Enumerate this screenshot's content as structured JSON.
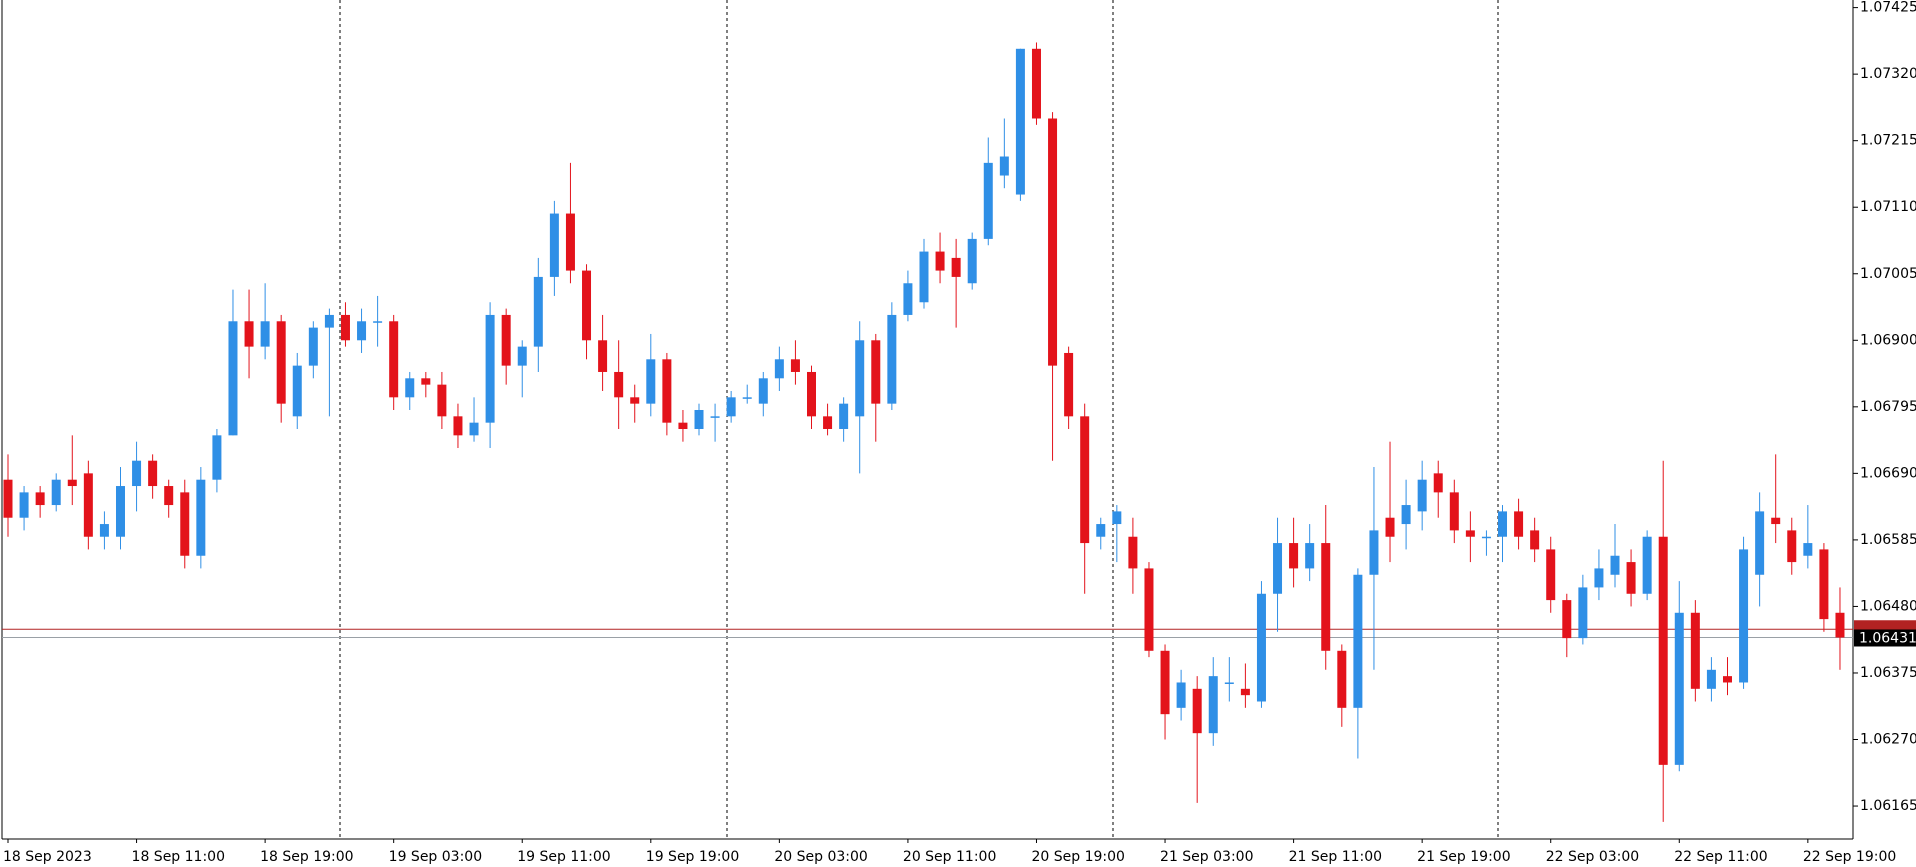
{
  "chart_data": {
    "type": "candlestick",
    "x_labels": [
      "18 Sep 2023",
      "18 Sep 11:00",
      "18 Sep 19:00",
      "19 Sep 03:00",
      "19 Sep 11:00",
      "19 Sep 19:00",
      "20 Sep 03:00",
      "20 Sep 11:00",
      "20 Sep 19:00",
      "21 Sep 03:00",
      "21 Sep 11:00",
      "21 Sep 19:00",
      "22 Sep 03:00",
      "22 Sep 11:00",
      "22 Sep 19:00"
    ],
    "open": [
      1.0668,
      1.0662,
      1.0666,
      1.0664,
      1.0668,
      1.0669,
      1.0659,
      1.0659,
      1.0667,
      1.0671,
      1.0667,
      1.0666,
      1.0656,
      1.0668,
      1.0675,
      1.0693,
      1.0689,
      1.0693,
      1.0678,
      1.0686,
      1.0692,
      1.0694,
      1.069,
      1.0693,
      1.0693,
      1.0681,
      1.0684,
      1.0683,
      1.0678,
      1.0675,
      1.0677,
      1.0694,
      1.0686,
      1.0689,
      1.07,
      1.071,
      1.0701,
      1.069,
      1.0685,
      1.0681,
      1.068,
      1.0687,
      1.0677,
      1.0676,
      1.0678,
      1.0678,
      1.0681,
      1.068,
      1.0684,
      1.0687,
      1.0685,
      1.0678,
      1.0676,
      1.0678,
      1.069,
      1.068,
      1.0694,
      1.0696,
      1.0704,
      1.0703,
      1.0699,
      1.0706,
      1.0716,
      1.0713,
      1.0736,
      1.0725,
      1.0688,
      1.0678,
      1.0659,
      1.0661,
      1.0659,
      1.0654,
      1.0641,
      1.0632,
      1.0635,
      1.0628,
      1.0636,
      1.0635,
      1.0633,
      1.065,
      1.0658,
      1.0654,
      1.0658,
      1.0641,
      1.0632,
      1.0653,
      1.0662,
      1.0661,
      1.0663,
      1.0669,
      1.0666,
      1.066,
      1.0659,
      1.0659,
      1.0663,
      1.066,
      1.0657,
      1.0649,
      1.0643,
      1.0651,
      1.0653,
      1.0655,
      1.065,
      1.0659,
      1.0623,
      1.0647,
      1.0635,
      1.0637,
      1.0636,
      1.0653,
      1.0662,
      1.066,
      1.0656,
      1.0657,
      1.0647
    ],
    "high": [
      1.0672,
      1.0667,
      1.0667,
      1.0669,
      1.0675,
      1.0671,
      1.0663,
      1.067,
      1.0674,
      1.0672,
      1.0668,
      1.0668,
      1.067,
      1.0676,
      1.0698,
      1.0698,
      1.0699,
      1.0694,
      1.0688,
      1.0693,
      1.0695,
      1.0696,
      1.0695,
      1.0697,
      1.0694,
      1.0685,
      1.0685,
      1.0685,
      1.068,
      1.0681,
      1.0696,
      1.0695,
      1.069,
      1.0703,
      1.0712,
      1.0718,
      1.0702,
      1.0694,
      1.069,
      1.0683,
      1.0691,
      1.0688,
      1.0679,
      1.068,
      1.068,
      1.0682,
      1.0683,
      1.0685,
      1.0689,
      1.069,
      1.0686,
      1.068,
      1.0681,
      1.0693,
      1.0691,
      1.0696,
      1.0701,
      1.0706,
      1.0707,
      1.0706,
      1.0707,
      1.0722,
      1.0725,
      1.0736,
      1.0737,
      1.0726,
      1.0689,
      1.068,
      1.0662,
      1.0664,
      1.0662,
      1.0655,
      1.0642,
      1.0638,
      1.0637,
      1.064,
      1.064,
      1.0639,
      1.0652,
      1.0662,
      1.0662,
      1.0661,
      1.0664,
      1.0642,
      1.0654,
      1.067,
      1.0674,
      1.0668,
      1.0671,
      1.0671,
      1.0668,
      1.0663,
      1.066,
      1.0664,
      1.0665,
      1.0662,
      1.0659,
      1.065,
      1.0653,
      1.0657,
      1.0661,
      1.0657,
      1.066,
      1.0671,
      1.0652,
      1.0649,
      1.064,
      1.064,
      1.0659,
      1.0666,
      1.0672,
      1.0662,
      1.0664,
      1.0658,
      1.0651
    ],
    "low": [
      1.0659,
      1.066,
      1.0662,
      1.0663,
      1.0664,
      1.0657,
      1.0657,
      1.0657,
      1.0663,
      1.0665,
      1.0662,
      1.0654,
      1.0654,
      1.0666,
      1.0675,
      1.0684,
      1.0687,
      1.0677,
      1.0676,
      1.0684,
      1.0678,
      1.0689,
      1.0688,
      1.0689,
      1.0679,
      1.0679,
      1.0681,
      1.0676,
      1.0673,
      1.0674,
      1.0673,
      1.0683,
      1.0681,
      1.0685,
      1.0697,
      1.0699,
      1.0687,
      1.0682,
      1.0676,
      1.0677,
      1.0678,
      1.0675,
      1.0674,
      1.0675,
      1.0674,
      1.0677,
      1.068,
      1.0678,
      1.0682,
      1.0683,
      1.0676,
      1.0675,
      1.0674,
      1.0669,
      1.0674,
      1.0679,
      1.0693,
      1.0695,
      1.0699,
      1.0692,
      1.0698,
      1.0705,
      1.0714,
      1.0712,
      1.0724,
      1.0671,
      1.0676,
      1.065,
      1.0657,
      1.0655,
      1.065,
      1.064,
      1.0627,
      1.063,
      1.0617,
      1.0626,
      1.0633,
      1.0632,
      1.0632,
      1.0644,
      1.0651,
      1.0652,
      1.0638,
      1.0629,
      1.0624,
      1.0638,
      1.0655,
      1.0657,
      1.066,
      1.0662,
      1.0658,
      1.0655,
      1.0656,
      1.0655,
      1.0657,
      1.0655,
      1.0647,
      1.064,
      1.0642,
      1.0649,
      1.0651,
      1.0648,
      1.0649,
      1.0614,
      1.0622,
      1.0633,
      1.0633,
      1.0634,
      1.0635,
      1.0648,
      1.0658,
      1.0653,
      1.0654,
      1.0644,
      1.0638
    ],
    "close": [
      1.0662,
      1.0666,
      1.0664,
      1.0668,
      1.0667,
      1.0659,
      1.0661,
      1.0667,
      1.0671,
      1.0667,
      1.0664,
      1.0656,
      1.0668,
      1.0675,
      1.0693,
      1.0689,
      1.0693,
      1.068,
      1.0686,
      1.0692,
      1.0694,
      1.069,
      1.0693,
      1.0693,
      1.0681,
      1.0684,
      1.0683,
      1.0678,
      1.0675,
      1.0677,
      1.0694,
      1.0686,
      1.0689,
      1.07,
      1.071,
      1.0701,
      1.069,
      1.0685,
      1.0681,
      1.068,
      1.0687,
      1.0677,
      1.0676,
      1.0679,
      1.0678,
      1.0681,
      1.0681,
      1.0684,
      1.0687,
      1.0685,
      1.0678,
      1.0676,
      1.068,
      1.069,
      1.068,
      1.0694,
      1.0699,
      1.0704,
      1.0701,
      1.07,
      1.0706,
      1.0718,
      1.0719,
      1.0736,
      1.0725,
      1.0686,
      1.0678,
      1.0658,
      1.0661,
      1.0663,
      1.0654,
      1.0641,
      1.0631,
      1.0636,
      1.0628,
      1.0637,
      1.0636,
      1.0634,
      1.065,
      1.0658,
      1.0654,
      1.0658,
      1.0641,
      1.0632,
      1.0653,
      1.066,
      1.0659,
      1.0664,
      1.0668,
      1.0666,
      1.066,
      1.0659,
      1.0659,
      1.0663,
      1.0659,
      1.0657,
      1.0649,
      1.0643,
      1.0651,
      1.0654,
      1.0656,
      1.065,
      1.0659,
      1.0623,
      1.0647,
      1.0635,
      1.0638,
      1.0636,
      1.0657,
      1.0663,
      1.0661,
      1.0655,
      1.0658,
      1.0646,
      1.06431
    ],
    "up_color": "#2f8fe6",
    "down_color": "#e3131b",
    "ylim": [
      1.06113,
      1.07437
    ],
    "yticks": [
      1.07425,
      {
        "value": 1.0732,
        "label": "1.07320"
      },
      1.07215,
      {
        "value": 1.0711,
        "label": "1.07110"
      },
      1.07005,
      {
        "value": 1.069,
        "label": "1.06900"
      },
      1.06795,
      {
        "value": 1.0669,
        "label": "1.06690"
      },
      1.06585,
      {
        "value": 1.0648,
        "label": "1.06480"
      },
      1.06375,
      {
        "value": 1.0627,
        "label": "1.06270"
      },
      1.06165
    ],
    "bid_price": 1.06431,
    "ask_price": 1.06444,
    "grid": false
  }
}
